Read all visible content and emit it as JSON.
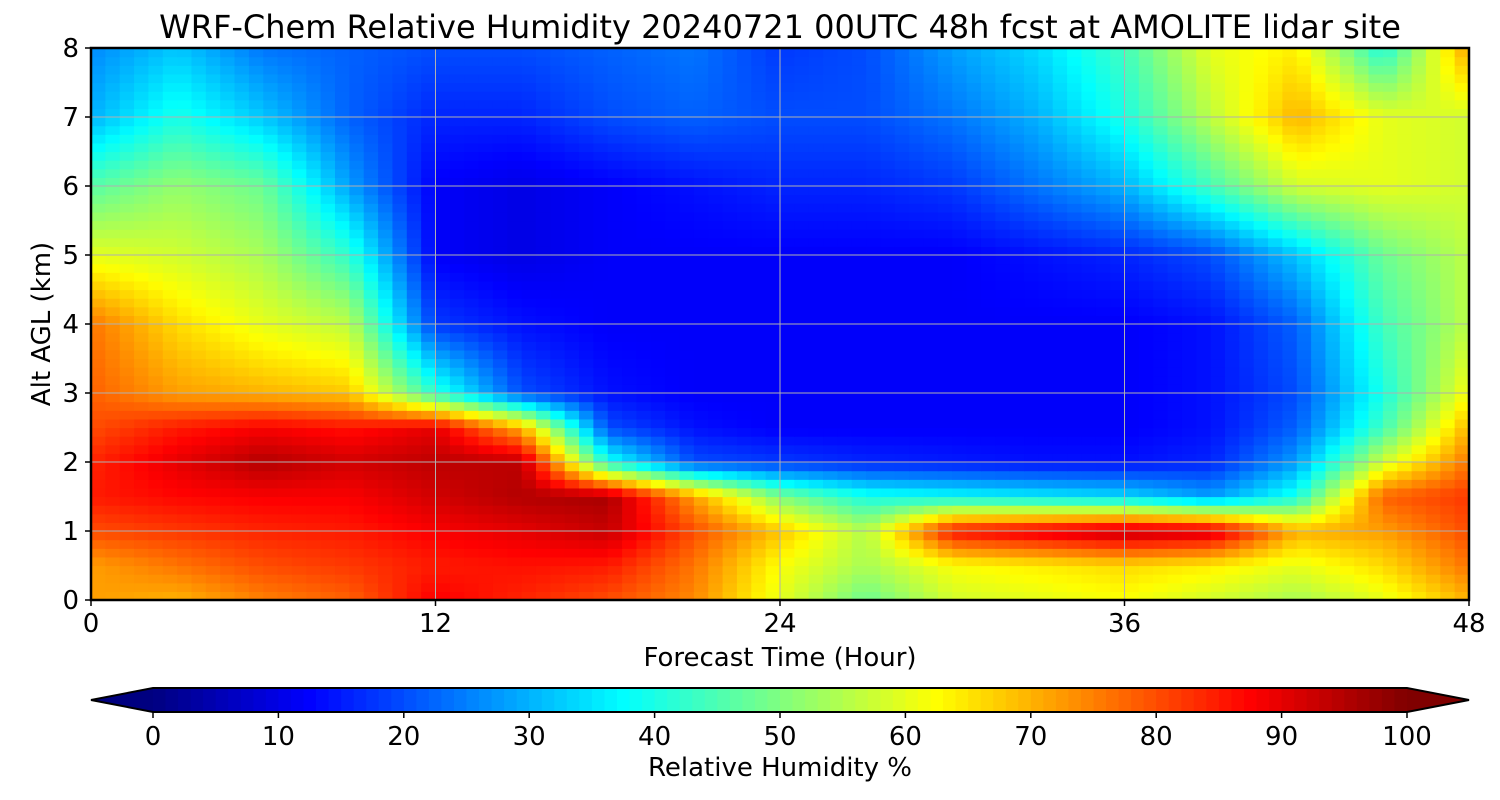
{
  "chart_data": {
    "type": "heatmap",
    "title": "WRF-Chem Relative Humidity 20240721 00UTC 48h fcst at AMOLITE lidar site",
    "xlabel": "Forecast Time (Hour)",
    "ylabel": "Alt AGL (km)",
    "xlim": [
      0,
      48
    ],
    "ylim": [
      0,
      8
    ],
    "x_ticks": [
      0,
      12,
      24,
      36,
      48
    ],
    "y_ticks": [
      0,
      1,
      2,
      3,
      4,
      5,
      6,
      7,
      8
    ],
    "grid": true,
    "colormap": "jet",
    "colorbar": {
      "label": "Relative Humidity %",
      "min": 0,
      "max": 100,
      "ticks": [
        0,
        10,
        20,
        30,
        40,
        50,
        60,
        70,
        80,
        90,
        100
      ],
      "extend": "both",
      "orientation": "horizontal"
    },
    "x": [
      0,
      3,
      6,
      9,
      12,
      15,
      18,
      21,
      24,
      27,
      30,
      33,
      36,
      39,
      42,
      45,
      48
    ],
    "y": [
      0,
      0.5,
      1,
      1.5,
      2,
      2.5,
      3,
      4,
      5,
      6,
      7,
      8
    ],
    "z": [
      [
        72,
        70,
        75,
        78,
        88,
        84,
        80,
        74,
        60,
        48,
        58,
        60,
        62,
        58,
        54,
        60,
        70
      ],
      [
        72,
        76,
        80,
        82,
        85,
        86,
        85,
        76,
        62,
        54,
        62,
        64,
        66,
        64,
        60,
        66,
        76
      ],
      [
        80,
        82,
        84,
        85,
        88,
        90,
        93,
        80,
        68,
        55,
        86,
        90,
        94,
        92,
        70,
        72,
        80
      ],
      [
        85,
        87,
        88,
        88,
        92,
        95,
        96,
        72,
        50,
        40,
        38,
        36,
        34,
        28,
        40,
        78,
        82
      ],
      [
        84,
        90,
        95,
        92,
        94,
        94,
        40,
        20,
        18,
        16,
        15,
        14,
        14,
        16,
        28,
        58,
        76
      ],
      [
        80,
        85,
        88,
        86,
        90,
        70,
        20,
        14,
        12,
        12,
        12,
        12,
        12,
        14,
        22,
        44,
        70
      ],
      [
        78,
        72,
        70,
        68,
        42,
        20,
        14,
        12,
        12,
        12,
        12,
        12,
        12,
        14,
        20,
        40,
        62
      ],
      [
        76,
        66,
        60,
        56,
        18,
        14,
        12,
        12,
        12,
        12,
        12,
        12,
        12,
        14,
        22,
        44,
        56
      ],
      [
        60,
        58,
        54,
        42,
        12,
        10,
        12,
        12,
        12,
        12,
        12,
        14,
        16,
        20,
        32,
        48,
        56
      ],
      [
        46,
        52,
        48,
        28,
        12,
        10,
        12,
        14,
        16,
        16,
        18,
        24,
        30,
        44,
        58,
        60,
        58
      ],
      [
        30,
        40,
        32,
        22,
        16,
        16,
        20,
        22,
        20,
        20,
        24,
        30,
        40,
        56,
        70,
        60,
        58
      ],
      [
        26,
        32,
        24,
        22,
        20,
        20,
        22,
        24,
        18,
        20,
        28,
        34,
        44,
        60,
        64,
        40,
        72
      ]
    ]
  }
}
